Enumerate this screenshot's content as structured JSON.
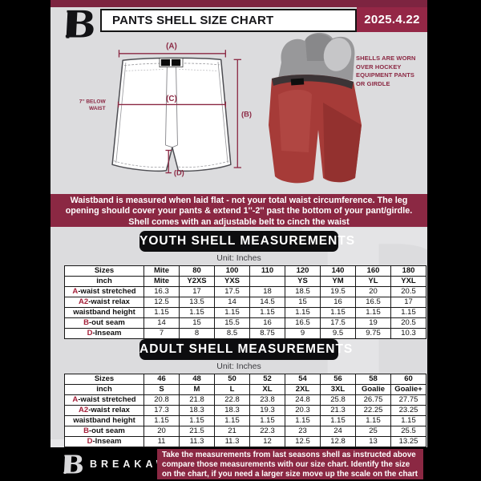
{
  "colors": {
    "maroon": "#8b2843",
    "maroon_strip": "#7d2440",
    "date_box": "#942746",
    "sheet_bg": "#dcdcde",
    "table_prefix_red": "#a31f38",
    "shell_red": "#a63b38",
    "header_black": "#0d0d0f"
  },
  "header": {
    "logo": "breakaway-b-logo",
    "title": "PANTS SHELL SIZE CHART",
    "date": "2025.4.22"
  },
  "diagram": {
    "label_a": "(A)",
    "label_b": "(B)",
    "label_c": "(C)",
    "label_d": "(D)",
    "waist_note_line1": "7'' BELOW",
    "waist_note_line2": "WAIST"
  },
  "photo": {
    "caption_lines": [
      "SHELLS ARE WORN",
      "OVER HOCKEY",
      "EQUIPMENT PANTS",
      "OR GIRDLE"
    ]
  },
  "banner_lines": [
    "Waistband is measured when laid flat - not your total waist circumference. The leg",
    "opening should cover your pants & extend 1''-2'' past the bottom of your pant/girdle.",
    "Shell comes with an adjustable belt to cinch the waist"
  ],
  "youth": {
    "heading": "YOUTH SHELL MEASUREMENTS",
    "unit": "Unit: Inches",
    "rows": [
      {
        "prefix": "",
        "label": "Sizes",
        "values": [
          "Mite",
          "80",
          "100",
          "110",
          "120",
          "140",
          "160",
          "180"
        ]
      },
      {
        "prefix": "",
        "label": "inch",
        "values": [
          "Mite",
          "Y2XS",
          "YXS",
          "",
          "YS",
          "YM",
          "YL",
          "YXL"
        ]
      },
      {
        "prefix": "A",
        "label": "-waist stretched",
        "values": [
          "16.3",
          "17",
          "17.5",
          "18",
          "18.5",
          "19.5",
          "20",
          "20.5"
        ]
      },
      {
        "prefix": "A2",
        "label": "-waist relax",
        "values": [
          "12.5",
          "13.5",
          "14",
          "14.5",
          "15",
          "16",
          "16.5",
          "17"
        ]
      },
      {
        "prefix": "",
        "label": "waistband height",
        "values": [
          "1.15",
          "1.15",
          "1.15",
          "1.15",
          "1.15",
          "1.15",
          "1.15",
          "1.15"
        ]
      },
      {
        "prefix": "B",
        "label": "-out seam",
        "values": [
          "14",
          "15",
          "15.5",
          "16",
          "16.5",
          "17.5",
          "19",
          "20.5"
        ]
      },
      {
        "prefix": "D",
        "label": "-Inseam",
        "values": [
          "7",
          "8",
          "8.5",
          "8.75",
          "9",
          "9.5",
          "9.75",
          "10.3"
        ]
      }
    ]
  },
  "adult": {
    "heading": "ADULT SHELL MEASUREMENTS",
    "unit": "Unit: Inches",
    "rows": [
      {
        "prefix": "",
        "label": "Sizes",
        "values": [
          "46",
          "48",
          "50",
          "52",
          "54",
          "56",
          "58",
          "60"
        ]
      },
      {
        "prefix": "",
        "label": "inch",
        "values": [
          "S",
          "M",
          "L",
          "XL",
          "2XL",
          "3XL",
          "Goalie",
          "Goalie+"
        ]
      },
      {
        "prefix": "A",
        "label": "-waist stretched",
        "values": [
          "20.8",
          "21.8",
          "22.8",
          "23.8",
          "24.8",
          "25.8",
          "26.75",
          "27.75"
        ]
      },
      {
        "prefix": "A2",
        "label": "-waist relax",
        "values": [
          "17.3",
          "18.3",
          "18.3",
          "19.3",
          "20.3",
          "21.3",
          "22.25",
          "23.25"
        ]
      },
      {
        "prefix": "",
        "label": "waistband height",
        "values": [
          "1.15",
          "1.15",
          "1.15",
          "1.15",
          "1.15",
          "1.15",
          "1.15",
          "1.15"
        ]
      },
      {
        "prefix": "B",
        "label": "-out seam",
        "values": [
          "20",
          "21.5",
          "21",
          "22.3",
          "23",
          "24",
          "25",
          "25.5"
        ]
      },
      {
        "prefix": "D",
        "label": "-Inseam",
        "values": [
          "11",
          "11.3",
          "11.3",
          "12",
          "12.5",
          "12.8",
          "13",
          "13.25"
        ]
      }
    ]
  },
  "footer": {
    "brand": "BREAKAWAY",
    "note_lines": [
      "Take the measurements from last seasons shell as instructed above",
      "compare those measurements  with our size chart. Identify the size",
      "on the chart, if you need a larger size move up the scale on the chart"
    ]
  },
  "watermark": "B"
}
